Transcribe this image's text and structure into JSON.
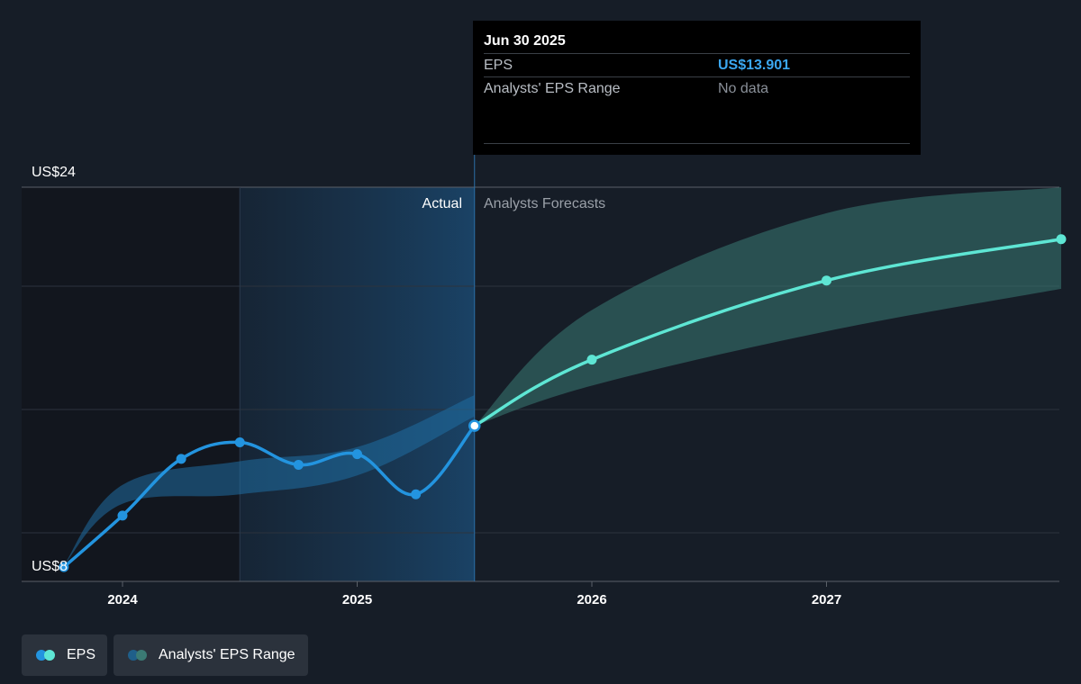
{
  "tooltip": {
    "date": "Jun 30 2025",
    "eps_label": "EPS",
    "eps_value": "US$13.901",
    "range_label": "Analysts' EPS Range",
    "range_value": "No data"
  },
  "labels": {
    "actual": "Actual",
    "forecast": "Analysts Forecasts"
  },
  "legend": {
    "eps_label": "EPS",
    "range_label": "Analysts' EPS Range"
  },
  "colors": {
    "background": "#161d27",
    "actual_line": "#2394df",
    "forecast_line": "#5ee6d4",
    "actual_band": "#1f6ea3",
    "forecast_band": "#3b7a74",
    "tooltip_value": "#3ba7f0",
    "tooltip_nodata": "#8a9099"
  },
  "chart_data": {
    "type": "line",
    "y_axis": {
      "min": 8,
      "max": 24,
      "tick_labels": [
        "US$24",
        "US$8"
      ]
    },
    "x_axis": {
      "ticks": [
        2024,
        2025,
        2026,
        2027
      ]
    },
    "actual_boundary": 2025.5,
    "highlight_start": 2024.5,
    "series": [
      {
        "name": "EPS",
        "segment": "actual",
        "x": [
          2023.75,
          2024.0,
          2024.25,
          2024.5,
          2024.75,
          2025.0,
          2025.25,
          2025.5
        ],
        "y": [
          7.92,
          10.1,
          12.5,
          13.2,
          12.25,
          12.7,
          11.0,
          13.9
        ]
      },
      {
        "name": "EPS",
        "segment": "forecast",
        "x": [
          2025.5,
          2026.0,
          2027.0,
          2028.0
        ],
        "y": [
          13.9,
          16.7,
          20.05,
          21.8
        ]
      }
    ],
    "range_bands": [
      {
        "name": "Analysts' EPS Range",
        "segment": "actual",
        "x": [
          2023.75,
          2024.0,
          2024.5,
          2025.0,
          2025.5
        ],
        "upper": [
          8.0,
          11.4,
          12.4,
          13.0,
          15.2
        ],
        "lower": [
          8.0,
          10.6,
          11.0,
          11.8,
          14.3
        ]
      },
      {
        "name": "Analysts' EPS Range",
        "segment": "forecast",
        "x": [
          2025.5,
          2026.0,
          2027.0,
          2028.0
        ],
        "upper": [
          13.9,
          18.8,
          22.9,
          24.0
        ],
        "lower": [
          13.9,
          15.6,
          17.9,
          19.7
        ]
      }
    ]
  }
}
